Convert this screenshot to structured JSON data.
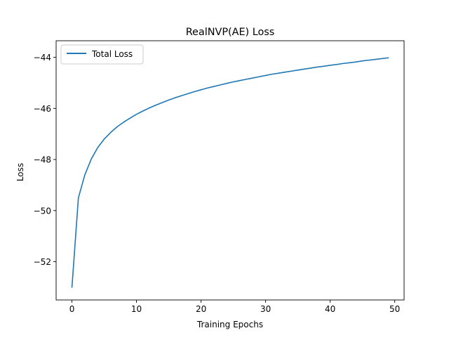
{
  "chart_data": {
    "type": "line",
    "title": "RealNVP(AE) Loss",
    "xlabel": "Training Epochs",
    "ylabel": "Loss",
    "xlim": [
      -2.45,
      51.45
    ],
    "ylim": [
      -53.5,
      -43.35
    ],
    "xticks": [
      0,
      10,
      20,
      30,
      40,
      50
    ],
    "xtick_labels": [
      "0",
      "10",
      "20",
      "30",
      "40",
      "50"
    ],
    "yticks": [
      -52,
      -50,
      -48,
      -46,
      -44
    ],
    "ytick_labels": [
      "−52",
      "−50",
      "−48",
      "−46",
      "−44"
    ],
    "grid": false,
    "legend_position": "top-left",
    "series": [
      {
        "name": "Total Loss",
        "color": "#1f77b4",
        "x": [
          0,
          1,
          2,
          3,
          4,
          5,
          6,
          7,
          8,
          9,
          10,
          11,
          12,
          13,
          14,
          15,
          16,
          17,
          18,
          19,
          20,
          21,
          22,
          23,
          24,
          25,
          26,
          27,
          28,
          29,
          30,
          31,
          32,
          33,
          34,
          35,
          36,
          37,
          38,
          39,
          40,
          41,
          42,
          43,
          44,
          45,
          46,
          47,
          48,
          49
        ],
        "y": [
          -53.0,
          -49.5,
          -48.6,
          -47.98,
          -47.53,
          -47.2,
          -46.94,
          -46.72,
          -46.54,
          -46.38,
          -46.23,
          -46.1,
          -45.98,
          -45.87,
          -45.77,
          -45.67,
          -45.58,
          -45.5,
          -45.42,
          -45.34,
          -45.27,
          -45.2,
          -45.14,
          -45.08,
          -45.02,
          -44.96,
          -44.91,
          -44.86,
          -44.81,
          -44.76,
          -44.71,
          -44.66,
          -44.62,
          -44.58,
          -44.54,
          -44.5,
          -44.46,
          -44.42,
          -44.38,
          -44.35,
          -44.31,
          -44.28,
          -44.24,
          -44.21,
          -44.18,
          -44.14,
          -44.11,
          -44.08,
          -44.05,
          -44.02
        ]
      }
    ]
  }
}
